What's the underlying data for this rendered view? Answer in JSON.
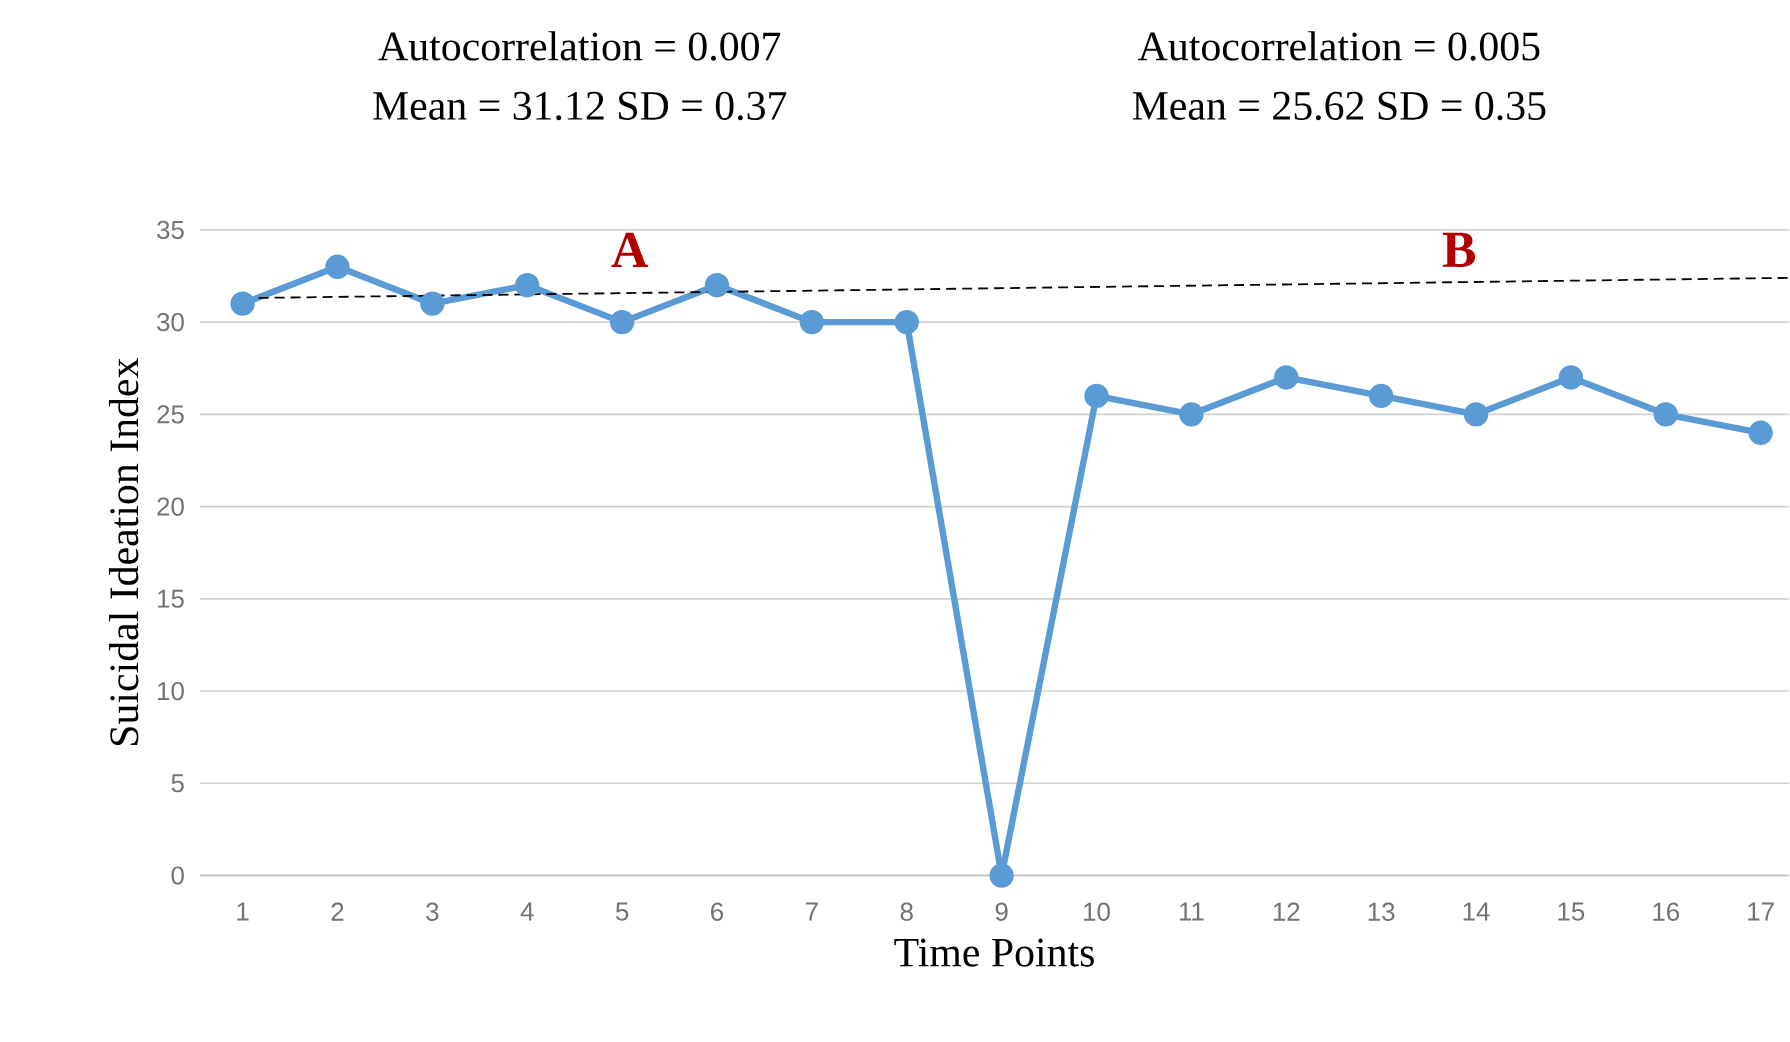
{
  "chart_data": {
    "type": "line",
    "xlabel": "Time Points",
    "ylabel": "Suicidal Ideation Index",
    "x": [
      1,
      2,
      3,
      4,
      5,
      6,
      7,
      8,
      9,
      10,
      11,
      12,
      13,
      14,
      15,
      16,
      17
    ],
    "series": [
      {
        "color": "#5b9bd5",
        "marker": "circle",
        "line_style": "solid",
        "values": [
          31,
          33,
          31,
          32,
          30,
          32,
          30,
          30,
          0,
          26,
          25,
          27,
          26,
          25,
          27,
          25,
          24
        ]
      },
      {
        "color": "#000000",
        "marker": "none",
        "line_style": "dashed",
        "x": [
          1,
          17.3
        ],
        "values": [
          31.3,
          32.4
        ]
      }
    ],
    "xlim": [
      0.55,
      17.3
    ],
    "xticks": [
      1,
      2,
      3,
      4,
      5,
      6,
      7,
      8,
      9,
      10,
      11,
      12,
      13,
      14,
      15,
      16,
      17
    ],
    "ylim": [
      0,
      35
    ],
    "yticks": [
      0,
      5,
      10,
      15,
      20,
      25,
      30,
      35
    ],
    "grid": "y",
    "annotations": [
      "Autocorrelation =  0.007",
      "Mean = 31.12   SD = 0.37",
      "Autocorrelation =  0.005",
      "Mean = 25.62  SD = 0.35",
      "A",
      "B"
    ]
  }
}
